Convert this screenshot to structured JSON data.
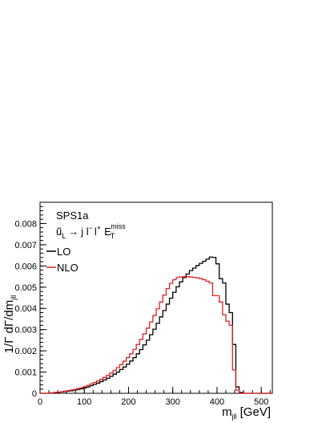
{
  "chart_data": {
    "type": "line",
    "style": "step-histogram",
    "annotation": {
      "title": "SPS1a",
      "process": {
        "parent": "ũ",
        "parent_sub": "L",
        "arrow": "→",
        "decay": "j l",
        "lminus": "−",
        "l": "l",
        "lplus": "+",
        "et": "E",
        "et_sub": "T",
        "et_sup": "miss"
      }
    },
    "xaxis": {
      "label_main": "m",
      "label_sub": "jll",
      "label_unit": "[GeV]",
      "range": [
        0,
        525
      ],
      "ticks": [
        0,
        100,
        200,
        300,
        400,
        500
      ],
      "tick_labels": [
        "0",
        "100",
        "200",
        "300",
        "400",
        "500"
      ],
      "minor_step": 20
    },
    "yaxis": {
      "label_main": "1/Γ dΓ/dm",
      "label_sub": "jll",
      "range": [
        0,
        0.009
      ],
      "ticks": [
        0,
        0.001,
        0.002,
        0.003,
        0.004,
        0.005,
        0.006,
        0.007,
        0.008
      ],
      "tick_labels": [
        "0",
        "0.001",
        "0.002",
        "0.003",
        "0.004",
        "0.005",
        "0.006",
        "0.007",
        "0.008"
      ],
      "minor_step": 0.0002
    },
    "legend": {
      "placement": "top-left"
    },
    "bin_width": 7.5,
    "series": [
      {
        "name": "LO",
        "color": "#000000",
        "x_start": 0,
        "values": [
          0,
          0,
          0,
          2e-05,
          3e-05,
          4e-05,
          6e-05,
          8e-05,
          0.0001,
          0.00012,
          0.00015,
          0.00018,
          0.00021,
          0.00025,
          0.0003,
          0.00036,
          0.00042,
          0.00048,
          0.00055,
          0.00063,
          0.00071,
          0.0008,
          0.0009,
          0.001,
          0.00112,
          0.00124,
          0.00137,
          0.00152,
          0.00168,
          0.00186,
          0.00206,
          0.00228,
          0.0025,
          0.00276,
          0.00302,
          0.0033,
          0.0036,
          0.0039,
          0.0042,
          0.00448,
          0.00476,
          0.00502,
          0.00525,
          0.00545,
          0.00562,
          0.00578,
          0.0059,
          0.00602,
          0.00612,
          0.00622,
          0.00632,
          0.00642,
          0.0064,
          0.0061,
          0.0054,
          0.0052,
          0.0042,
          0.0038,
          0.0023,
          0.0003,
          5e-05,
          0,
          0,
          0,
          0,
          0,
          0,
          0,
          0,
          0
        ]
      },
      {
        "name": "NLO",
        "color": "#dd2222",
        "x_start": 0,
        "values": [
          0,
          0,
          0,
          2e-05,
          4e-05,
          5e-05,
          7e-05,
          0.0001,
          0.00012,
          0.00015,
          0.00018,
          0.00022,
          0.00026,
          0.00031,
          0.00037,
          0.00044,
          0.00051,
          0.00058,
          0.00066,
          0.00075,
          0.00085,
          0.00096,
          0.00108,
          0.00121,
          0.00135,
          0.00151,
          0.00168,
          0.00186,
          0.00207,
          0.0023,
          0.00254,
          0.0028,
          0.00307,
          0.00336,
          0.00366,
          0.00398,
          0.0043,
          0.00463,
          0.00493,
          0.00518,
          0.00535,
          0.00545,
          0.00548,
          0.00549,
          0.00549,
          0.00548,
          0.00546,
          0.00544,
          0.0054,
          0.00535,
          0.00528,
          0.0052,
          0.0046,
          0.0046,
          0.0043,
          0.0037,
          0.0034,
          0.0032,
          0.0011,
          0.00015,
          3e-05,
          0,
          0,
          0,
          0,
          0,
          0,
          0,
          0,
          0
        ]
      }
    ]
  }
}
